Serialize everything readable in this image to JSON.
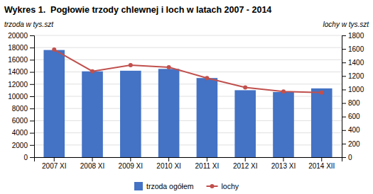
{
  "chart_data": {
    "type": "bar",
    "title": "Wykres 1.  Pogłowie trzody chlewnej i loch w latach 2007 - 2014",
    "categories": [
      "2007 XI",
      "2008 XI",
      "2009 XI",
      "2010 XI",
      "2011 XI",
      "2012 XI",
      "2013 XI",
      "2014 XII"
    ],
    "series": [
      {
        "name": "trzoda ogółem",
        "type": "bar",
        "color": "#4472C4",
        "values": [
          17600,
          14100,
          14200,
          14500,
          13000,
          11000,
          10700,
          11300
        ]
      },
      {
        "name": "lochy",
        "type": "line",
        "color": "#C0504D",
        "marker": "circle",
        "axis": "y2",
        "values": [
          1590,
          1270,
          1360,
          1330,
          1170,
          1030,
          970,
          955
        ]
      }
    ],
    "ylabel": "trzoda w tys.szt",
    "y2label": "lochy w tys.szt",
    "ylim": [
      0,
      20000
    ],
    "yticks": [
      0,
      2000,
      4000,
      6000,
      8000,
      10000,
      12000,
      14000,
      16000,
      18000,
      20000
    ],
    "y2lim": [
      0,
      1800
    ],
    "y2ticks": [
      0,
      200,
      400,
      600,
      800,
      1000,
      1200,
      1400,
      1600,
      1800
    ],
    "grid": true,
    "legend": "bottom"
  }
}
